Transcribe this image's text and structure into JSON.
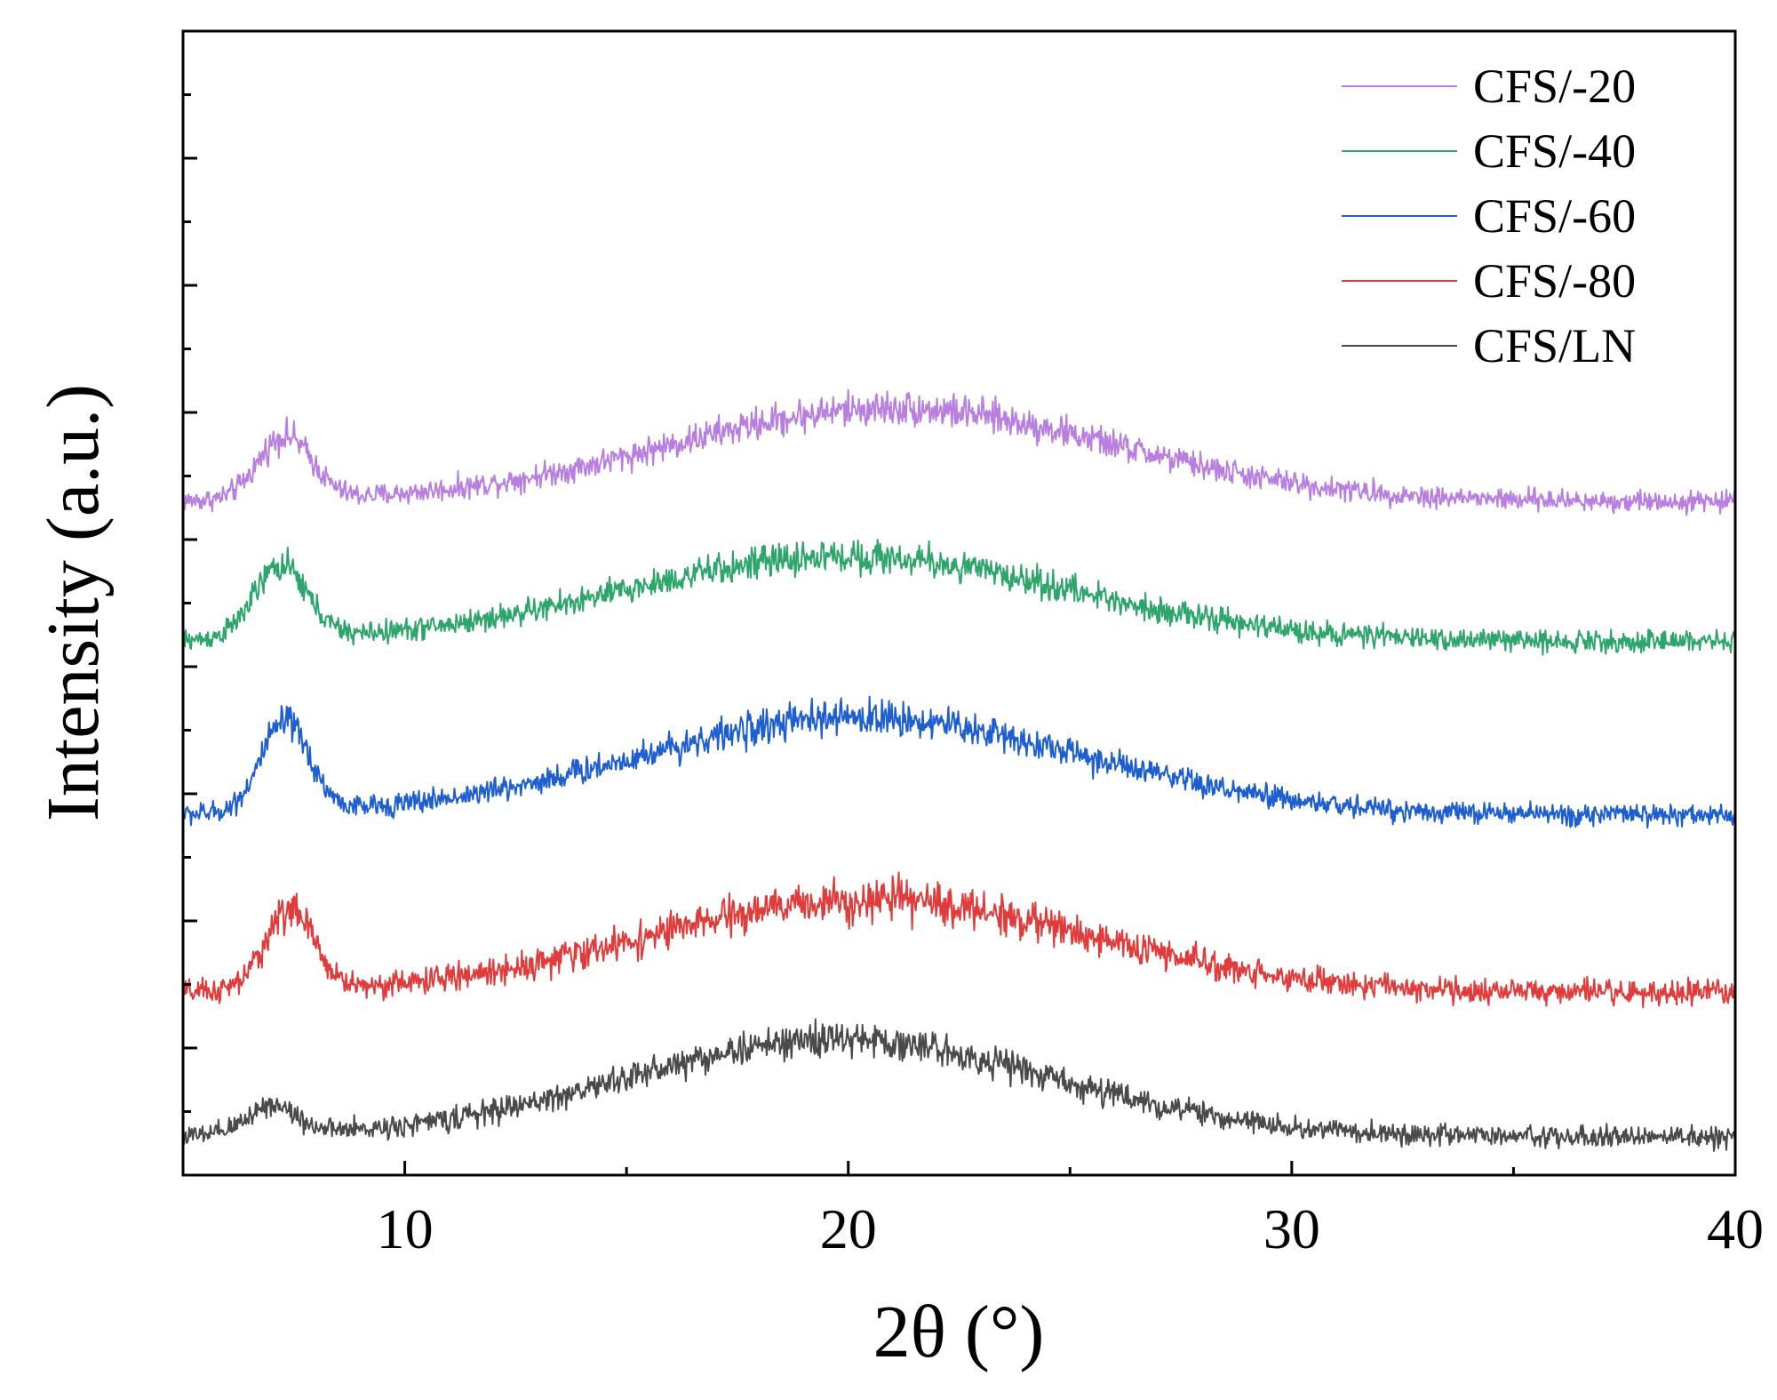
{
  "chart_data": {
    "type": "line",
    "title": "",
    "xlabel": "2θ (°)",
    "ylabel": "Intensity (a.u.)",
    "xlim": [
      5,
      40
    ],
    "ylim": [
      0,
      13.5
    ],
    "x_ticks": [
      10,
      20,
      30,
      40
    ],
    "x_tick_labels": [
      "10",
      "20",
      "30",
      "40"
    ],
    "y_tick_labels_shown": false,
    "grid": false,
    "legend_position": "top-right",
    "series": [
      {
        "name": "CFS/-20",
        "color": "#b87fe0",
        "offset": 7.9,
        "noise": 0.12,
        "baseline": 0.05,
        "features": [
          {
            "center": 7.3,
            "height": 0.75,
            "width": 0.6
          },
          {
            "center": 21.0,
            "height": 1.1,
            "width": 5.0
          }
        ]
      },
      {
        "name": "CFS/-40",
        "color": "#2ea56b",
        "offset": 6.25,
        "noise": 0.12,
        "baseline": 0.05,
        "features": [
          {
            "center": 7.2,
            "height": 0.85,
            "width": 0.6
          },
          {
            "center": 20.0,
            "height": 1.0,
            "width": 5.0
          }
        ]
      },
      {
        "name": "CFS/-60",
        "color": "#1d5fd0",
        "offset": 4.2,
        "noise": 0.12,
        "baseline": 0.05,
        "features": [
          {
            "center": 7.3,
            "height": 1.05,
            "width": 0.55
          },
          {
            "center": 20.3,
            "height": 1.15,
            "width": 5.0
          }
        ]
      },
      {
        "name": "CFS/-80",
        "color": "#e03c3c",
        "offset": 2.1,
        "noise": 0.14,
        "baseline": 0.05,
        "features": [
          {
            "center": 7.4,
            "height": 0.95,
            "width": 0.55
          },
          {
            "center": 20.5,
            "height": 1.1,
            "width": 5.0
          }
        ]
      },
      {
        "name": "CFS/LN",
        "color": "#4a4a4a",
        "offset": 0.45,
        "noise": 0.12,
        "baseline": 0.0,
        "features": [
          {
            "center": 7.0,
            "height": 0.35,
            "width": 0.55
          },
          {
            "center": 19.8,
            "height": 1.15,
            "width": 4.8
          }
        ]
      }
    ]
  }
}
